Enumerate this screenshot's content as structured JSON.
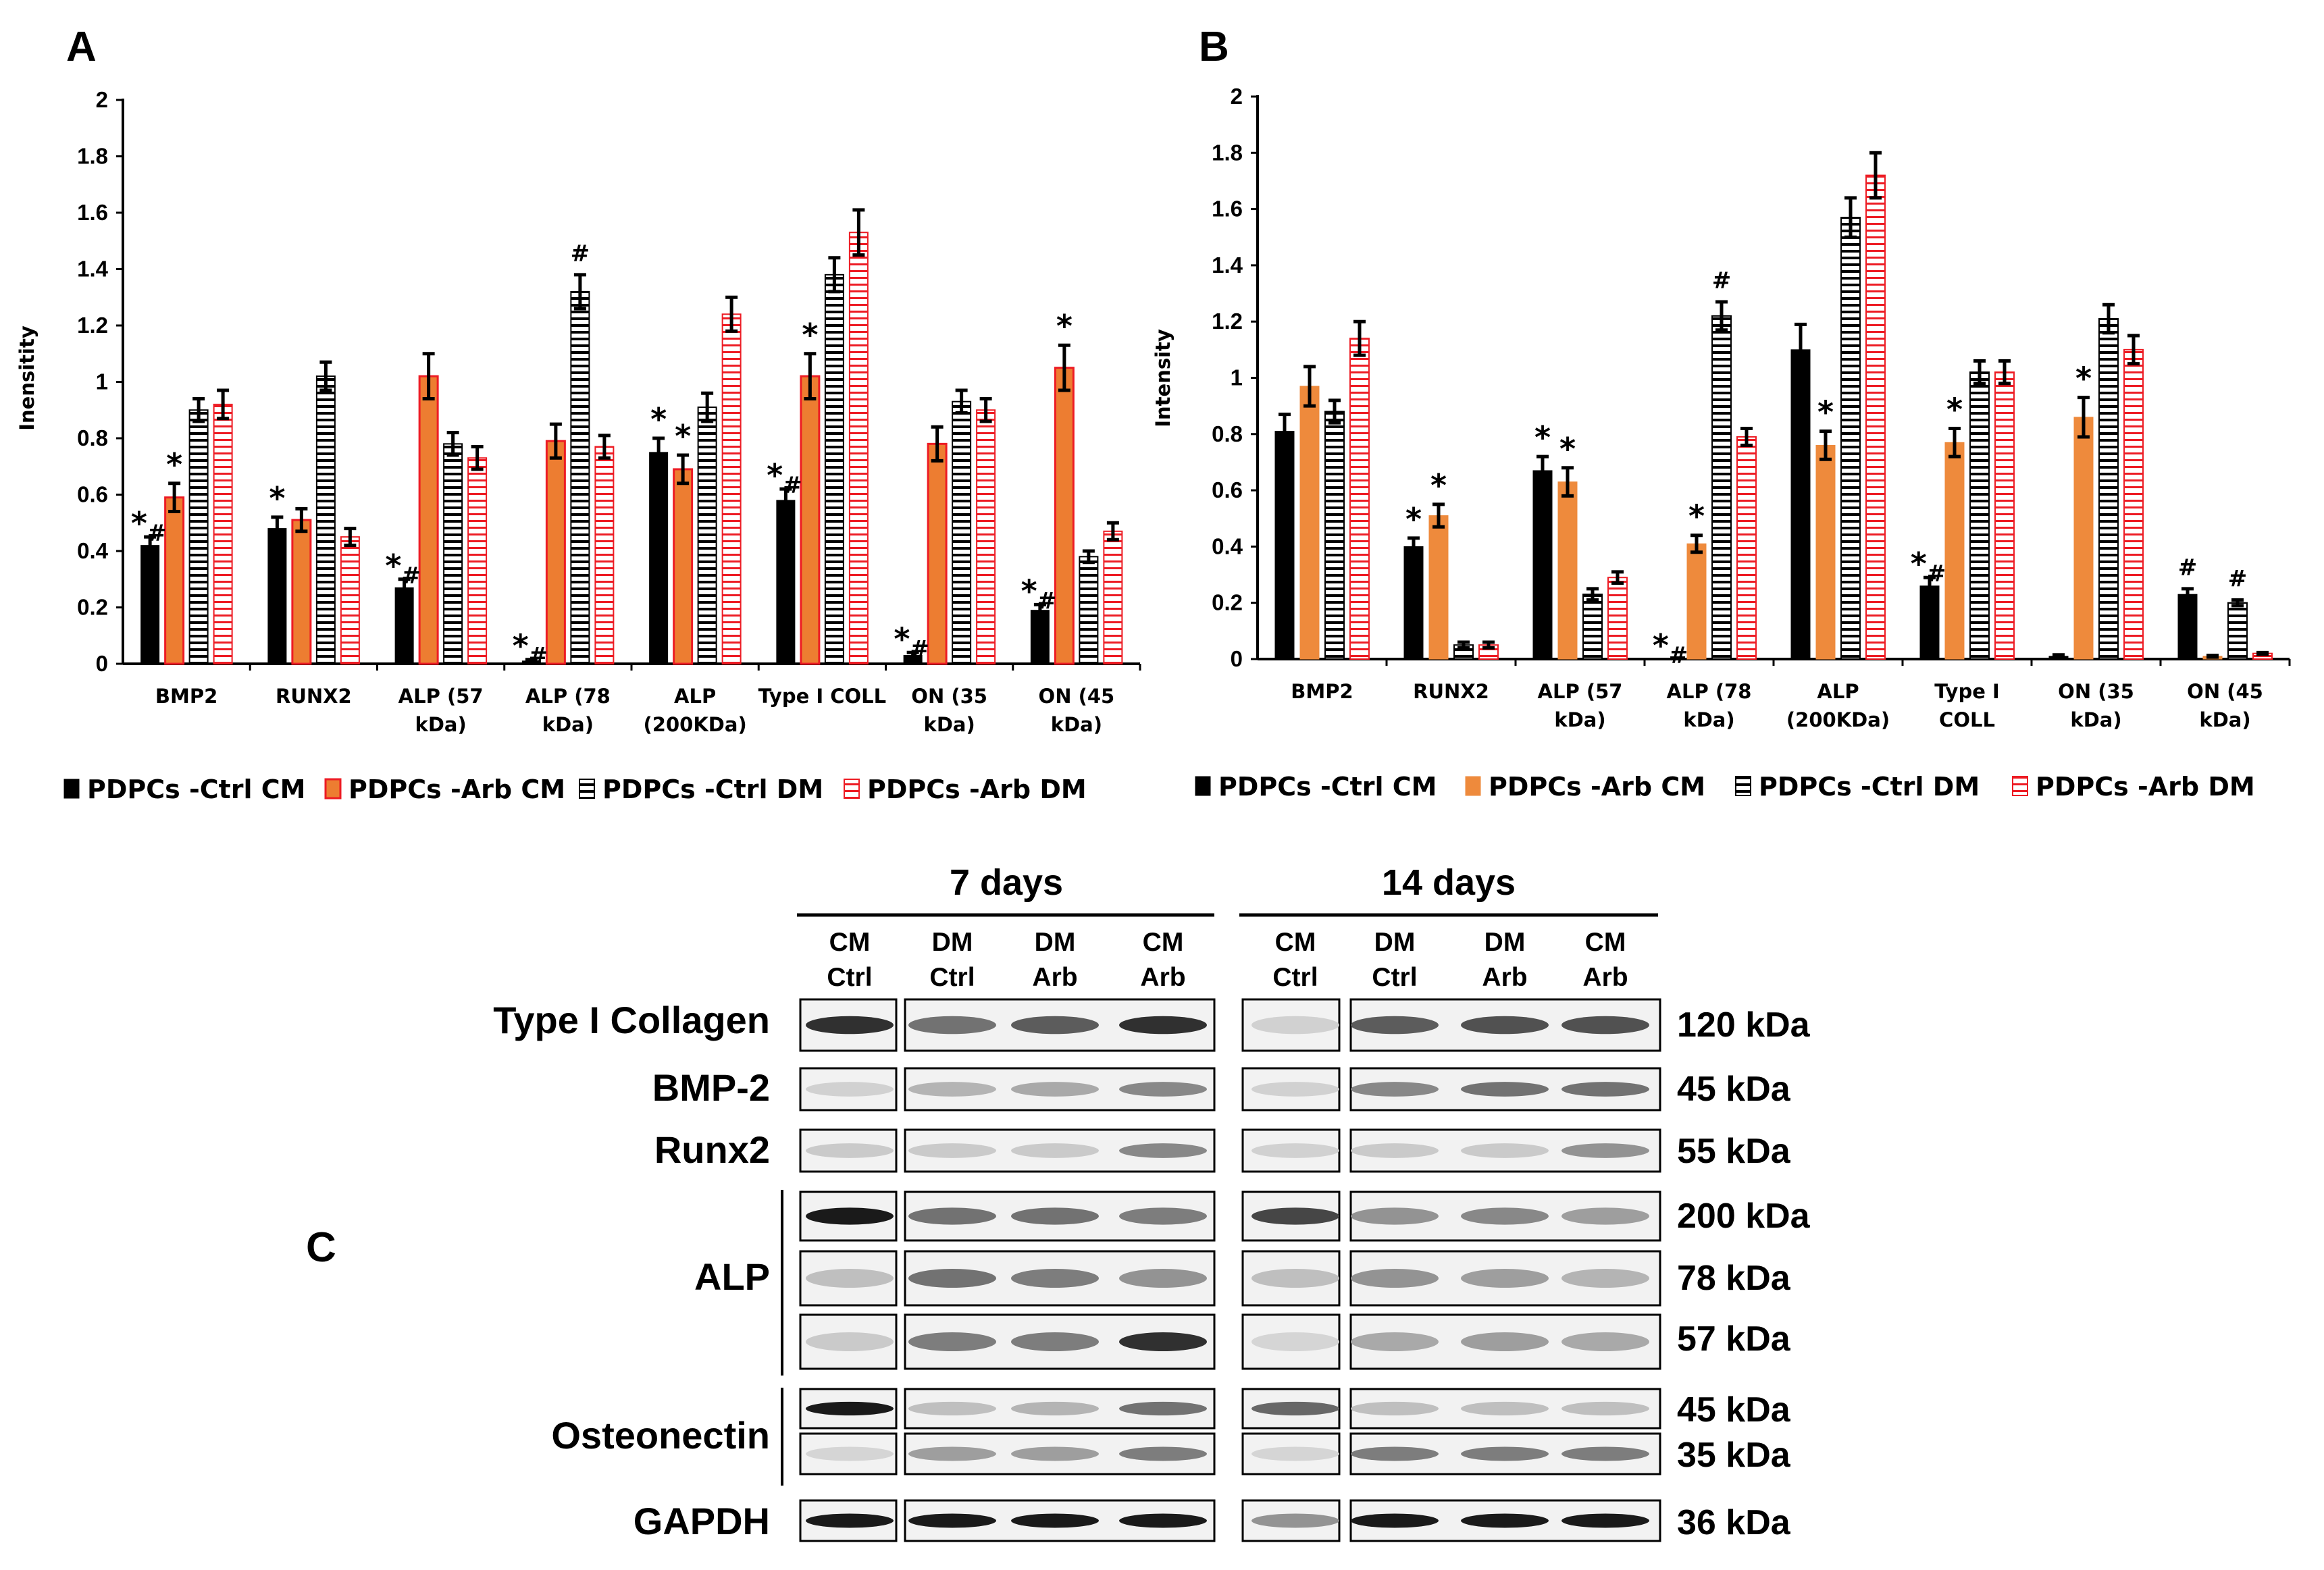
{
  "colors": {
    "ctrl_cm": "#000000",
    "arb_cm_A": "#ed7d31",
    "arb_cm_B": "#ee8a3c",
    "arb_dm": "#ed1c24",
    "ctrl_dm": "#000000"
  },
  "chart_data": [
    {
      "panel": "A",
      "type": "bar",
      "ylabel": "Inensitity",
      "ylim": [
        0,
        2
      ],
      "yticks": [
        "0",
        "0.2",
        "0.4",
        "0.6",
        "0.8",
        "1",
        "1.2",
        "1.4",
        "1.6",
        "1.8",
        "2"
      ],
      "categories": [
        [
          "BMP2"
        ],
        [
          "RUNX2"
        ],
        [
          "ALP (57",
          "kDa)"
        ],
        [
          "ALP (78",
          "kDa)"
        ],
        [
          "ALP",
          "(200KDa)"
        ],
        [
          "Type I COLL"
        ],
        [
          "ON (35",
          "kDa)"
        ],
        [
          "ON (45",
          "kDa)"
        ]
      ],
      "series": [
        {
          "name": "PDPCs -Ctrl CM",
          "values": [
            0.42,
            0.48,
            0.27,
            0.01,
            0.75,
            0.58,
            0.03,
            0.19
          ],
          "errors": [
            0.03,
            0.04,
            0.03,
            0.005,
            0.05,
            0.04,
            0.01,
            0.02
          ]
        },
        {
          "name": "PDPCs -Arb CM",
          "values": [
            0.59,
            0.51,
            1.02,
            0.79,
            0.69,
            1.02,
            0.78,
            1.05
          ],
          "errors": [
            0.05,
            0.04,
            0.08,
            0.06,
            0.05,
            0.08,
            0.06,
            0.08
          ]
        },
        {
          "name": "PDPCs -Ctrl DM",
          "values": [
            0.9,
            1.02,
            0.78,
            1.32,
            0.91,
            1.38,
            0.93,
            0.38
          ],
          "errors": [
            0.04,
            0.05,
            0.04,
            0.06,
            0.05,
            0.06,
            0.04,
            0.02
          ]
        },
        {
          "name": "PDPCs -Arb DM",
          "values": [
            0.92,
            0.45,
            0.73,
            0.77,
            1.24,
            1.53,
            0.9,
            0.47
          ],
          "errors": [
            0.05,
            0.03,
            0.04,
            0.04,
            0.06,
            0.08,
            0.04,
            0.03
          ]
        }
      ],
      "annotations": [
        {
          "text": "*#",
          "cat": 0,
          "series": 0
        },
        {
          "text": "*",
          "cat": 0,
          "series": 1
        },
        {
          "text": "*",
          "cat": 1,
          "series": 0
        },
        {
          "text": "*#",
          "cat": 2,
          "series": 0
        },
        {
          "text": "*#",
          "cat": 3,
          "series": 0
        },
        {
          "text": "#",
          "cat": 3,
          "series": 2
        },
        {
          "text": "*",
          "cat": 4,
          "series": 0
        },
        {
          "text": "*",
          "cat": 4,
          "series": 1
        },
        {
          "text": "*#",
          "cat": 5,
          "series": 0
        },
        {
          "text": "*",
          "cat": 5,
          "series": 1
        },
        {
          "text": "*#",
          "cat": 6,
          "series": 0
        },
        {
          "text": "*#",
          "cat": 7,
          "series": 0
        },
        {
          "text": "*",
          "cat": 7,
          "series": 1
        }
      ]
    },
    {
      "panel": "B",
      "type": "bar",
      "ylabel": "Intensity",
      "ylim": [
        0,
        2
      ],
      "yticks": [
        "0",
        "0.2",
        "0.4",
        "0.6",
        "0.8",
        "1",
        "1.2",
        "1.4",
        "1.6",
        "1.8",
        "2"
      ],
      "categories": [
        [
          "BMP2"
        ],
        [
          "RUNX2"
        ],
        [
          "ALP (57",
          "kDa)"
        ],
        [
          "ALP (78",
          "kDa)"
        ],
        [
          "ALP",
          "(200KDa)"
        ],
        [
          "Type I",
          "COLL"
        ],
        [
          "ON (35",
          "kDa)"
        ],
        [
          "ON (45",
          "kDa)"
        ]
      ],
      "series": [
        {
          "name": "PDPCs -Ctrl CM",
          "values": [
            0.81,
            0.4,
            0.67,
            0.0,
            1.1,
            0.26,
            0.01,
            0.23
          ],
          "errors": [
            0.06,
            0.03,
            0.05,
            0.0,
            0.09,
            0.03,
            0.005,
            0.02
          ]
        },
        {
          "name": "PDPCs -Arb CM",
          "values": [
            0.97,
            0.51,
            0.63,
            0.41,
            0.76,
            0.77,
            0.86,
            0.01
          ],
          "errors": [
            0.07,
            0.04,
            0.05,
            0.03,
            0.05,
            0.05,
            0.07,
            0.003
          ]
        },
        {
          "name": "PDPCs -Ctrl DM",
          "values": [
            0.88,
            0.05,
            0.23,
            1.22,
            1.57,
            1.02,
            1.21,
            0.2
          ],
          "errors": [
            0.04,
            0.01,
            0.02,
            0.05,
            0.07,
            0.04,
            0.05,
            0.01
          ]
        },
        {
          "name": "PDPCs -Arb DM",
          "values": [
            1.14,
            0.05,
            0.29,
            0.79,
            1.72,
            1.02,
            1.1,
            0.02
          ],
          "errors": [
            0.06,
            0.01,
            0.02,
            0.03,
            0.08,
            0.04,
            0.05,
            0.003
          ]
        }
      ],
      "annotations": [
        {
          "text": "*",
          "cat": 1,
          "series": 0
        },
        {
          "text": "*",
          "cat": 1,
          "series": 1
        },
        {
          "text": "*",
          "cat": 2,
          "series": 0
        },
        {
          "text": "*",
          "cat": 2,
          "series": 1
        },
        {
          "text": "*#",
          "cat": 3,
          "series": 0
        },
        {
          "text": "*",
          "cat": 3,
          "series": 1
        },
        {
          "text": "#",
          "cat": 3,
          "series": 2
        },
        {
          "text": "*",
          "cat": 4,
          "series": 1
        },
        {
          "text": "*#",
          "cat": 5,
          "series": 0
        },
        {
          "text": "*",
          "cat": 5,
          "series": 1
        },
        {
          "text": "*",
          "cat": 6,
          "series": 1
        },
        {
          "text": "#",
          "cat": 7,
          "series": 0
        },
        {
          "text": "#",
          "cat": 7,
          "series": 2
        }
      ]
    }
  ],
  "panel_labels": {
    "a": "A",
    "b": "B",
    "c": "C"
  },
  "blot": {
    "groups": [
      "7 days",
      "14 days"
    ],
    "lanes": [
      {
        "top": "CM",
        "bottom": "Ctrl"
      },
      {
        "top": "DM",
        "bottom": "Ctrl"
      },
      {
        "top": "DM",
        "bottom": "Arb"
      },
      {
        "top": "CM",
        "bottom": "Arb"
      }
    ],
    "proteins": [
      "Type I Collagen",
      "BMP-2",
      "Runx2",
      "ALP",
      "Osteonectin",
      "GAPDH"
    ],
    "sizes": [
      "120 kDa",
      "45 kDa",
      "55 kDa",
      "200 kDa",
      "78 kDa",
      "57 kDa",
      "45 kDa",
      "35 kDa",
      "36 kDa"
    ],
    "band_intensity_7d": [
      [
        0.85,
        0.55,
        0.65,
        0.85
      ],
      [
        0.12,
        0.25,
        0.3,
        0.45
      ],
      [
        0.15,
        0.15,
        0.15,
        0.45
      ],
      [
        0.95,
        0.55,
        0.55,
        0.5
      ],
      [
        0.2,
        0.55,
        0.5,
        0.4
      ],
      [
        0.15,
        0.5,
        0.5,
        0.85
      ],
      [
        0.95,
        0.2,
        0.25,
        0.55
      ],
      [
        0.1,
        0.35,
        0.35,
        0.5
      ],
      [
        0.95,
        0.95,
        0.95,
        0.95
      ]
    ],
    "band_intensity_14d": [
      [
        0.12,
        0.65,
        0.7,
        0.7
      ],
      [
        0.12,
        0.45,
        0.55,
        0.55
      ],
      [
        0.12,
        0.15,
        0.15,
        0.4
      ],
      [
        0.75,
        0.4,
        0.45,
        0.35
      ],
      [
        0.2,
        0.4,
        0.35,
        0.25
      ],
      [
        0.1,
        0.3,
        0.35,
        0.3
      ],
      [
        0.6,
        0.2,
        0.2,
        0.2
      ],
      [
        0.1,
        0.5,
        0.5,
        0.5
      ],
      [
        0.4,
        0.95,
        0.95,
        0.95
      ]
    ]
  }
}
